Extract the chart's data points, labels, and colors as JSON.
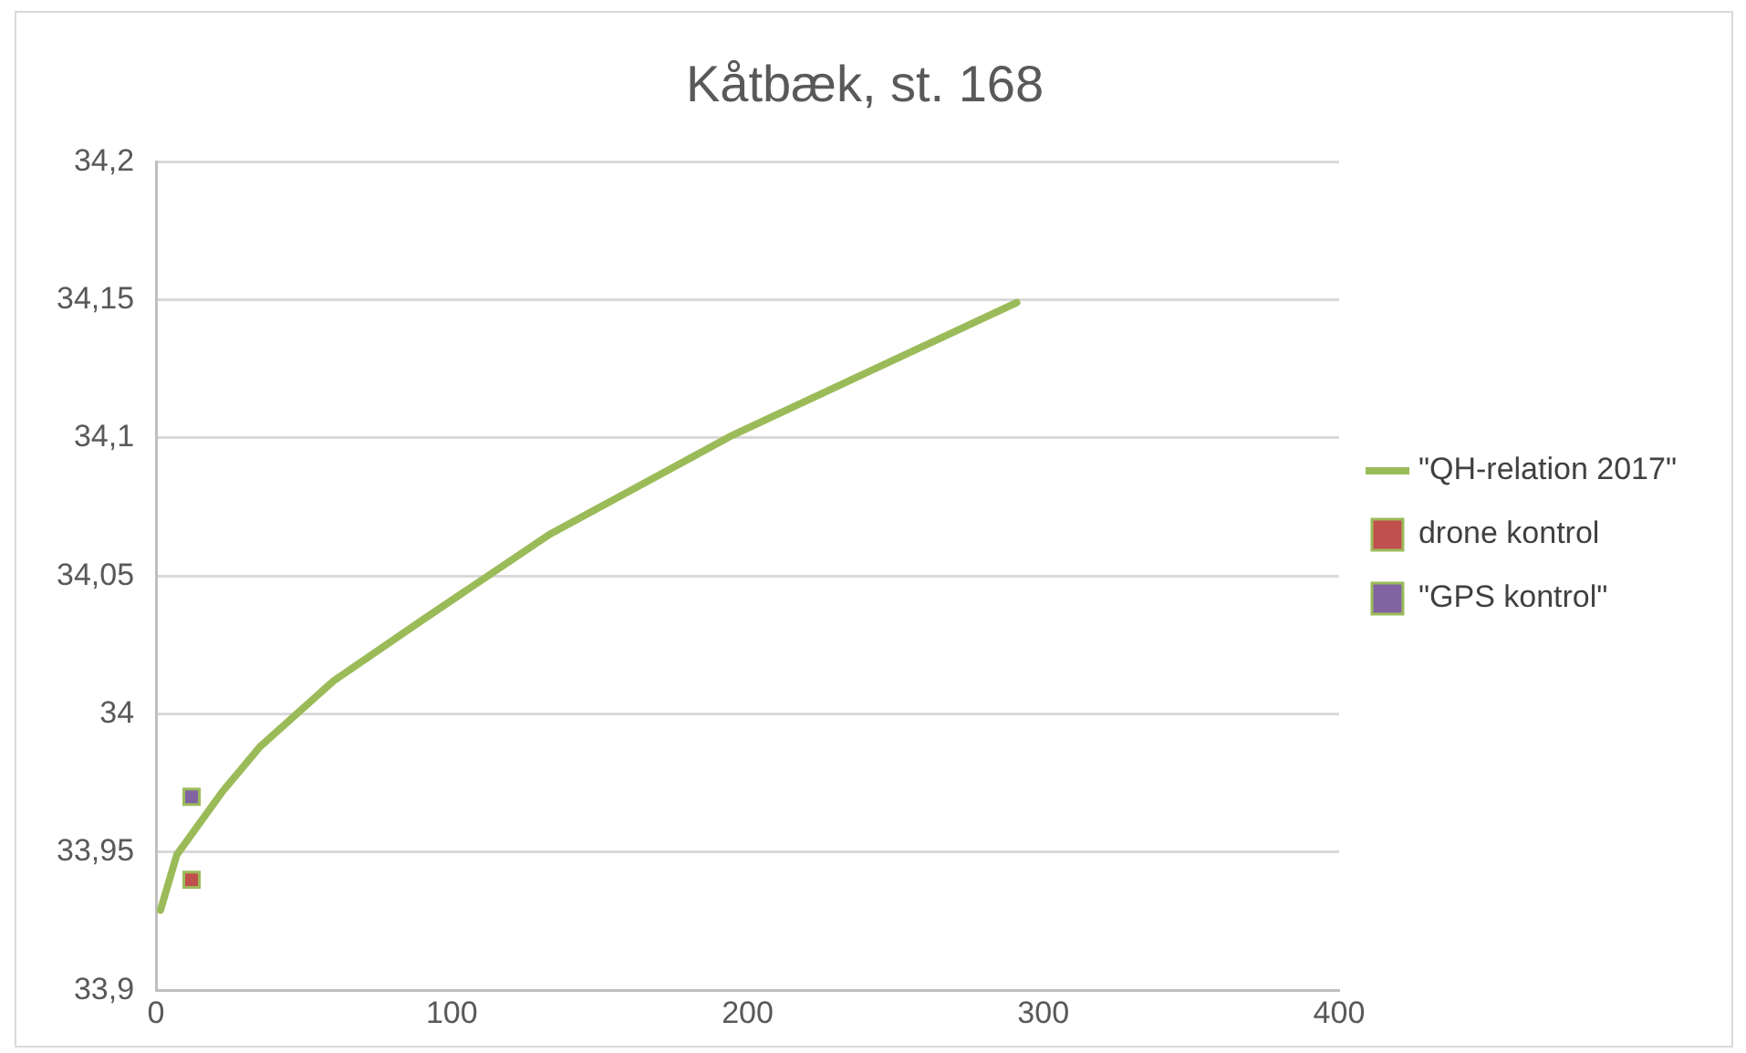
{
  "chart_data": {
    "type": "scatter",
    "title": "Kåtbæk, st. 168",
    "series": [
      {
        "name": "\"QH-relation 2017\"",
        "type": "line",
        "color": "#9bbb59",
        "marker": "none",
        "x": [
          1.5,
          7,
          22.5,
          35,
          60,
          90,
          133,
          195,
          291
        ],
        "values": [
          33.929,
          33.949,
          33.972,
          33.988,
          34.012,
          34.034,
          34.065,
          34.101,
          34.149
        ]
      },
      {
        "name": "drone kontrol",
        "type": "scatter",
        "color": "#c0504d",
        "marker": "square",
        "x": [
          12
        ],
        "values": [
          33.94
        ]
      },
      {
        "name": "\"GPS kontrol\"",
        "type": "scatter",
        "color": "#8064a2",
        "marker": "square",
        "x": [
          12
        ],
        "values": [
          33.97
        ]
      }
    ],
    "xlim": [
      0,
      400
    ],
    "xticks": [
      0,
      100,
      200,
      300,
      400
    ],
    "ylim": [
      33.9,
      34.2
    ],
    "yticks": [
      {
        "value": 33.9,
        "label": "33,9"
      },
      {
        "value": 33.95,
        "label": "33,95"
      },
      {
        "value": 34,
        "label": "34"
      },
      {
        "value": 34.05,
        "label": "34,05"
      },
      {
        "value": 34.1,
        "label": "34,1"
      },
      {
        "value": 34.15,
        "label": "34,15"
      },
      {
        "value": 34.2,
        "label": "34,2"
      }
    ],
    "grid": "y",
    "legend": "right"
  }
}
